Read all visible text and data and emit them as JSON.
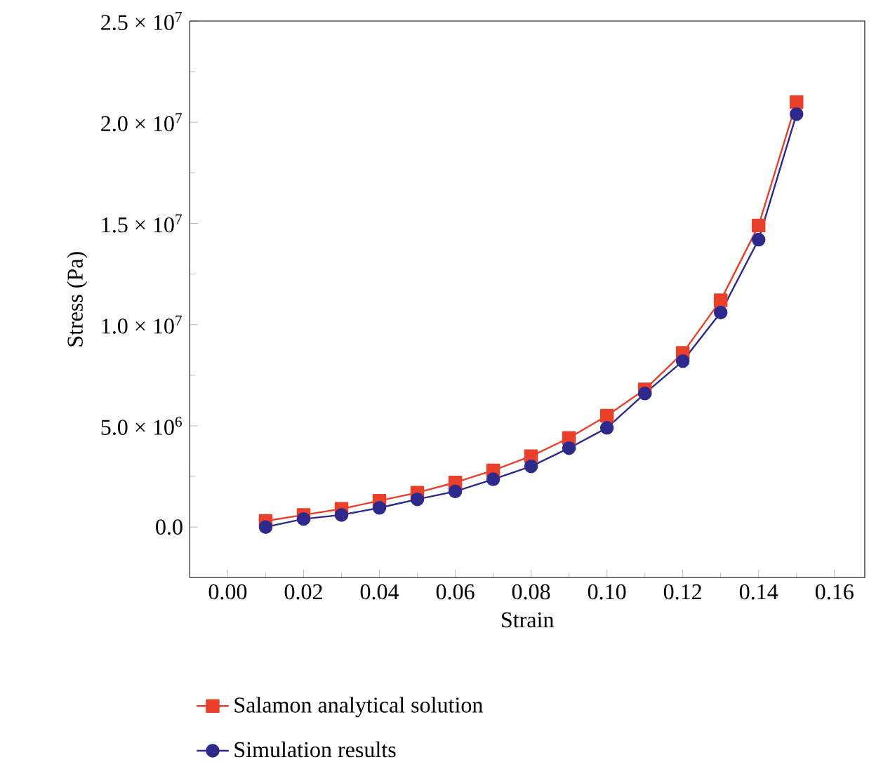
{
  "chart_data": {
    "type": "line",
    "xlabel": "Strain",
    "ylabel": "Stress (Pa)",
    "x": [
      0.01,
      0.02,
      0.03,
      0.04,
      0.05,
      0.06,
      0.07,
      0.08,
      0.09,
      0.1,
      0.11,
      0.12,
      0.13,
      0.14,
      0.15
    ],
    "series": [
      {
        "name": "Salamon analytical solution",
        "color": "#e8402a",
        "marker": "square",
        "values": [
          300000,
          600000,
          900000,
          1300000,
          1700000,
          2200000,
          2800000,
          3500000,
          4400000,
          5500000,
          6800000,
          8600000,
          11200000,
          14900000,
          21000000
        ]
      },
      {
        "name": "Simulation results",
        "color": "#2e2a8c",
        "marker": "circle",
        "values": [
          0,
          400000,
          600000,
          950000,
          1370000,
          1760000,
          2360000,
          3000000,
          3900000,
          4900000,
          6600000,
          8200000,
          10600000,
          14200000,
          20400000
        ]
      }
    ],
    "xlim": [
      -0.01,
      0.168
    ],
    "ylim": [
      -2500000,
      25000000
    ],
    "xticks": [
      {
        "value": 0.0,
        "label": "0.00"
      },
      0.02,
      0.04,
      0.06,
      0.08,
      {
        "value": 0.1,
        "label": "0.10"
      },
      0.12,
      0.14,
      0.16
    ],
    "yticks": [
      {
        "value": 0,
        "label": "0.0"
      },
      {
        "value": 5000000,
        "label": "5.0 × 10$^{6}$"
      },
      {
        "value": 10000000,
        "label": "1.0 × 10$^{7}$"
      },
      {
        "value": 15000000,
        "label": "1.5 × 10$^{7}$"
      },
      {
        "value": 20000000,
        "label": "2.0 × 10$^{7}$"
      },
      {
        "value": 25000000,
        "label": "2.5 × 10$^{7}$"
      }
    ],
    "legend": "bottom",
    "grid": false,
    "line_style": "solid"
  }
}
